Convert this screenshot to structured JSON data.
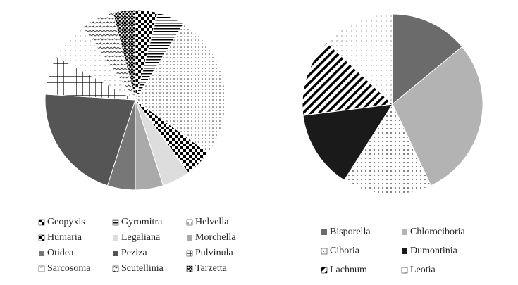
{
  "chart_data": [
    {
      "type": "pie",
      "categories": [
        "Geopyxis",
        "Gyromitra",
        "Helvella",
        "Humaria",
        "Legaliana",
        "Morchella",
        "Otidea",
        "Peziza",
        "Pulvinula",
        "Sarcosoma",
        "Scutellinia",
        "Tarzetta"
      ],
      "values": [
        4,
        5,
        26,
        5,
        5,
        5,
        5,
        21,
        7,
        7,
        6,
        4
      ],
      "colors": [
        "#000000",
        "#333333",
        "#888888",
        "#000000",
        "#dddddd",
        "#aaaaaa",
        "#777777",
        "#555555",
        "#000000",
        "#999999",
        "#666666",
        "#222222"
      ]
    },
    {
      "type": "pie",
      "categories": [
        "Bisporella",
        "Chlorociboria",
        "Ciboria",
        "Dumontinia",
        "Lachnum",
        "Leotia"
      ],
      "values": [
        14,
        29,
        16,
        14,
        14,
        13
      ],
      "colors": [
        "#6b6b6b",
        "#b3b3b3",
        "#999999",
        "#1a1a1a",
        "#000000",
        "#aaaaaa"
      ]
    }
  ]
}
